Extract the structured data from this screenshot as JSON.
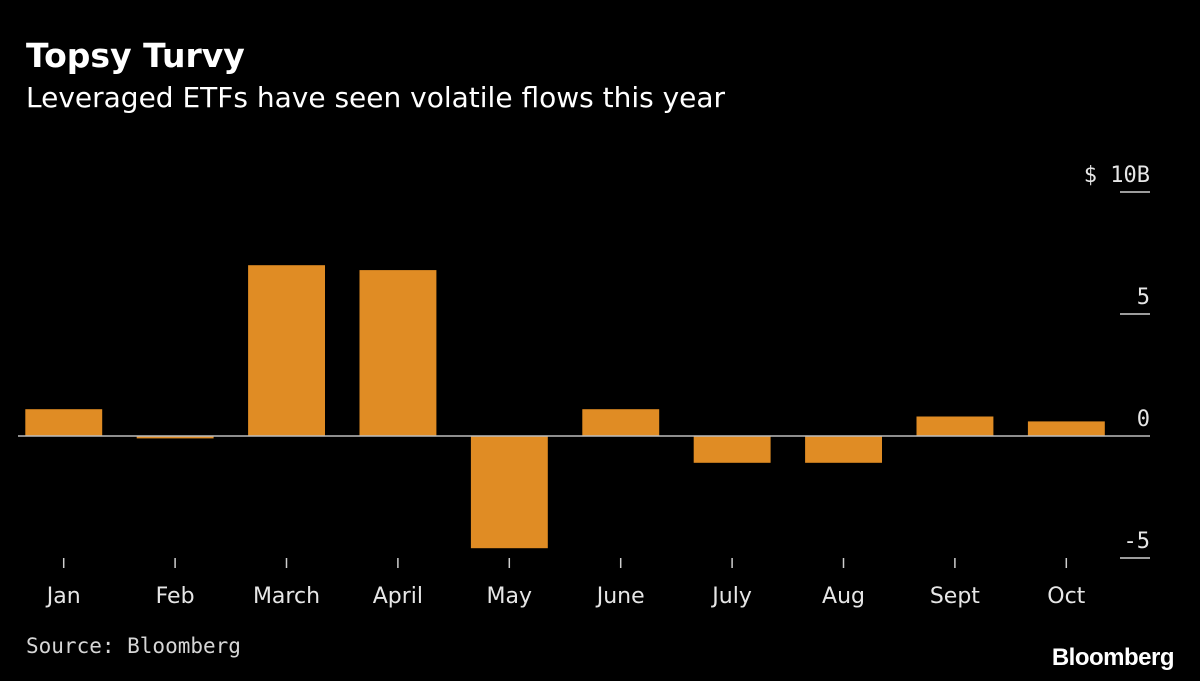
{
  "header": {
    "title": "Topsy Turvy",
    "subtitle": "Leveraged ETFs have seen volatile flows this year"
  },
  "footer": {
    "source": "Source: Bloomberg",
    "brand": "Bloomberg"
  },
  "colors": {
    "background": "#000000",
    "bar": "#E08C24",
    "zero_line": "#bdbdbd",
    "text": "#ffffff"
  },
  "chart_data": {
    "type": "bar",
    "title": "Topsy Turvy",
    "subtitle": "Leveraged ETFs have seen volatile flows this year",
    "categories": [
      "Jan",
      "Feb",
      "March",
      "April",
      "May",
      "June",
      "July",
      "Aug",
      "Sept",
      "Oct"
    ],
    "values": [
      1.1,
      -0.1,
      7.0,
      6.8,
      -4.6,
      1.1,
      -1.1,
      -1.1,
      0.8,
      0.6
    ],
    "unit": "$ billions",
    "ylim": [
      -5,
      10
    ],
    "yticks": [
      -5,
      0,
      5,
      10
    ],
    "ytick_labels": [
      "-5",
      "0",
      "5",
      "$ 10B"
    ],
    "xlabel": "",
    "ylabel": "",
    "grid": false,
    "legend": "none",
    "y_axis_position": "right"
  }
}
